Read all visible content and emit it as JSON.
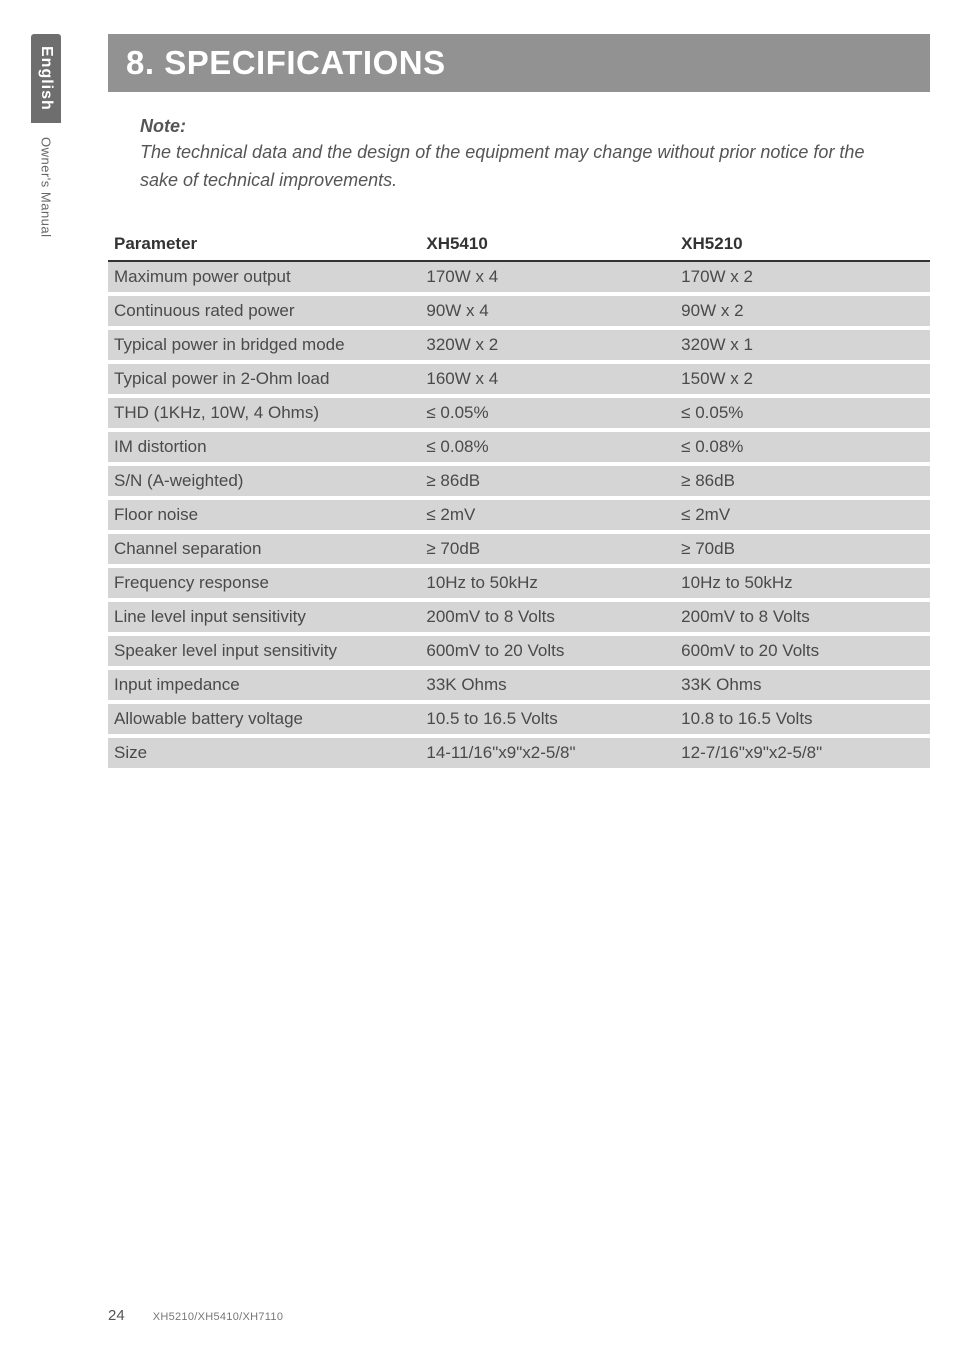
{
  "side": {
    "lang": "English",
    "doc": "Owner's Manual"
  },
  "title": "8. SPECIFICATIONS",
  "note": {
    "label": "Note:",
    "body": "The technical data and the design of the equipment may change without prior notice for the sake of technical improvements."
  },
  "table": {
    "headers": {
      "param": "Parameter",
      "a": "XH5410",
      "b": "XH5210"
    },
    "header_border_color": "#333333",
    "row_bg": "#d5d5d5",
    "row_gap_color": "#ffffff",
    "text_color": "#4a4a4a",
    "font_size_pt": 13,
    "rows": [
      {
        "param": "Maximum power output",
        "a": "170W x 4",
        "b": "170W x 2"
      },
      {
        "param": "Continuous rated power",
        "a": "90W x 4",
        "b": "90W x 2"
      },
      {
        "param": "Typical power in bridged mode",
        "a": "320W x 2",
        "b": "320W x 1"
      },
      {
        "param": "Typical power in 2-Ohm load",
        "a": "160W x 4",
        "b": "150W x 2"
      },
      {
        "param": "THD (1KHz, 10W, 4 Ohms)",
        "a": "≤ 0.05%",
        "b": "≤ 0.05%"
      },
      {
        "param": "IM distortion",
        "a": "≤ 0.08%",
        "b": "≤ 0.08%"
      },
      {
        "param": "S/N (A-weighted)",
        "a": "≥ 86dB",
        "b": "≥ 86dB"
      },
      {
        "param": "Floor noise",
        "a": "≤ 2mV",
        "b": "≤ 2mV"
      },
      {
        "param": "Channel separation",
        "a": "≥ 70dB",
        "b": "≥ 70dB"
      },
      {
        "param": "Frequency response",
        "a": "10Hz to 50kHz",
        "b": "10Hz to 50kHz"
      },
      {
        "param": "Line level input sensitivity",
        "a": "200mV to 8 Volts",
        "b": "200mV to 8 Volts"
      },
      {
        "param": "Speaker level input sensitivity",
        "a": "600mV to 20 Volts",
        "b": "600mV to 20 Volts"
      },
      {
        "param": "Input impedance",
        "a": "33K Ohms",
        "b": "33K Ohms"
      },
      {
        "param": "Allowable battery voltage",
        "a": "10.5 to 16.5 Volts",
        "b": "10.8 to 16.5 Volts"
      },
      {
        "param": "Size",
        "a": "14-11/16\"x9\"x2-5/8\"",
        "b": "12-7/16\"x9\"x2-5/8\""
      }
    ]
  },
  "footer": {
    "page": "24",
    "model": "XH5210/XH5410/XH7110"
  },
  "colors": {
    "title_bg": "#929292",
    "title_fg": "#ffffff",
    "side_dark_bg": "#6e6e6e",
    "body_text": "#3a3a3a"
  }
}
